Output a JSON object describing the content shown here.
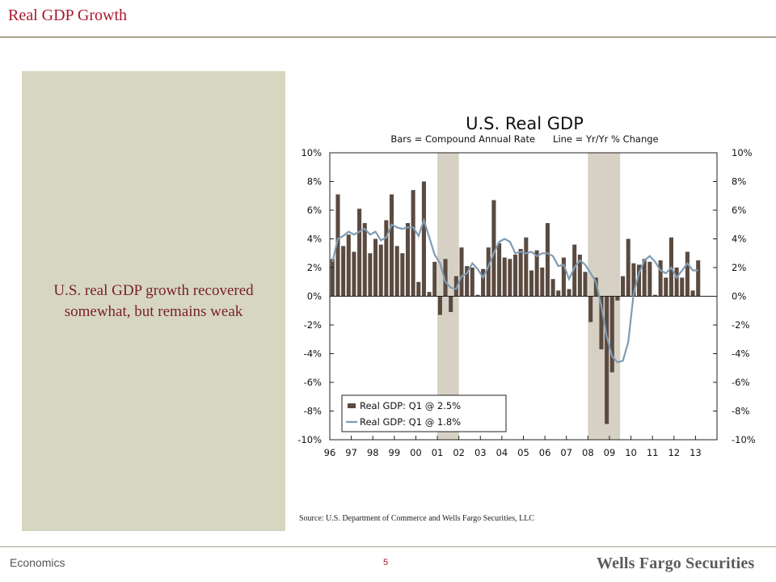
{
  "header": {
    "title": "Real GDP Growth"
  },
  "left_panel": {
    "headline": "U.S. real GDP growth recovered somewhat, but remains weak"
  },
  "source": "Source:  U.S. Department of Commerce and Wells Fargo Securities, LLC",
  "footer": {
    "section": "Economics",
    "page_number": "5",
    "brand": "Wells Fargo Securities"
  },
  "colors": {
    "bar": "#5a4a3f",
    "line": "#7f9cb4",
    "recession": "#d6d1c4",
    "title": "#a6192e"
  },
  "chart_data": {
    "type": "bar",
    "title": "U.S. Real GDP",
    "subtitle": "Bars = Compound Annual Rate      Line = Yr/Yr % Change",
    "x_tick_labels": [
      "96",
      "97",
      "98",
      "99",
      "00",
      "01",
      "02",
      "03",
      "04",
      "05",
      "06",
      "07",
      "08",
      "09",
      "10",
      "11",
      "12",
      "13"
    ],
    "y_tick_labels": [
      "10%",
      "8%",
      "6%",
      "4%",
      "2%",
      "0%",
      "-2%",
      "-4%",
      "-6%",
      "-8%",
      "-10%"
    ],
    "ylim": [
      -10,
      10
    ],
    "legend_position": "lower-left",
    "recession_shading": [
      [
        "2001-Q1",
        "2001-Q4"
      ],
      [
        "2008-Q1",
        "2009-Q2"
      ]
    ],
    "quarters_start": "1996-Q1",
    "series": [
      {
        "name": "Real GDP: Q1 @ 2.5%",
        "kind": "bar",
        "values": [
          2.6,
          7.1,
          3.5,
          4.3,
          3.1,
          6.1,
          5.1,
          3.0,
          4.0,
          3.6,
          5.3,
          7.1,
          3.5,
          3.0,
          5.1,
          7.4,
          1.0,
          8.0,
          0.3,
          2.4,
          -1.3,
          2.6,
          -1.1,
          1.4,
          3.4,
          2.1,
          2.0,
          0.1,
          1.9,
          3.4,
          6.7,
          3.7,
          2.7,
          2.6,
          2.9,
          3.3,
          4.1,
          1.8,
          3.2,
          2.0,
          5.1,
          1.2,
          0.4,
          2.7,
          0.5,
          3.6,
          2.9,
          1.7,
          -1.8,
          1.3,
          -3.7,
          -8.9,
          -5.3,
          -0.3,
          1.4,
          4.0,
          2.3,
          2.2,
          2.6,
          2.4,
          0.1,
          2.5,
          1.3,
          4.1,
          2.0,
          1.3,
          3.1,
          0.4,
          2.5
        ]
      },
      {
        "name": "Real GDP: Q1 @ 1.8%",
        "kind": "line",
        "values": [
          2.4,
          4.0,
          4.2,
          4.5,
          4.3,
          4.5,
          4.7,
          4.3,
          4.5,
          3.9,
          4.1,
          5.0,
          4.8,
          4.7,
          4.8,
          4.8,
          4.2,
          5.3,
          4.1,
          2.9,
          2.3,
          1.0,
          0.6,
          0.5,
          1.4,
          1.6,
          2.3,
          1.9,
          1.3,
          2.1,
          3.0,
          3.8,
          4.0,
          3.8,
          3.0,
          3.1,
          3.0,
          3.1,
          2.8,
          3.0,
          3.0,
          2.8,
          2.1,
          2.2,
          1.2,
          2.0,
          2.5,
          2.2,
          1.6,
          1.0,
          -0.7,
          -2.8,
          -4.2,
          -4.6,
          -4.5,
          -3.2,
          0.2,
          1.6,
          2.5,
          2.8,
          2.4,
          1.8,
          1.6,
          2.0,
          1.3,
          1.8,
          2.3,
          1.8,
          1.8
        ]
      }
    ]
  }
}
